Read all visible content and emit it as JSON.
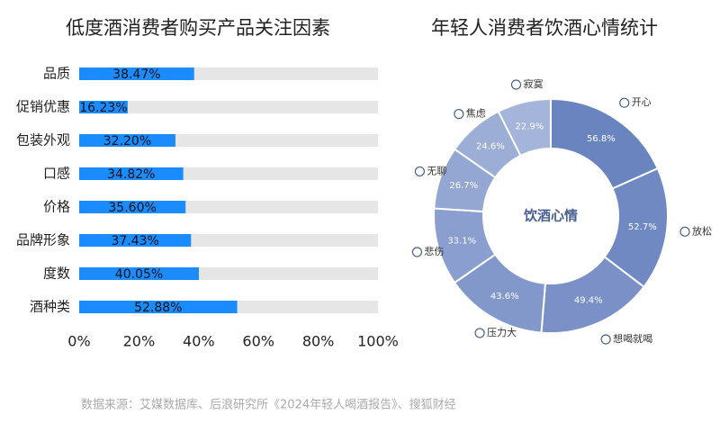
{
  "chart_data": [
    {
      "type": "hbar",
      "title": "低度酒消费者购买产品关注因素",
      "categories": [
        "品质",
        "促销优惠",
        "包装外观",
        "口感",
        "价格",
        "品牌形象",
        "度数",
        "酒种类"
      ],
      "values": [
        38.47,
        16.23,
        32.2,
        34.82,
        35.6,
        37.43,
        40.05,
        52.88
      ],
      "value_labels": [
        "38.47%",
        "16.23%",
        "32.20%",
        "34.82%",
        "35.60%",
        "37.43%",
        "40.05%",
        "52.88%"
      ],
      "color": "#1a8cff",
      "track_color": "#e6e6e6",
      "xlim": [
        0,
        100
      ],
      "xticks": [
        {
          "value": 0,
          "label": "0%"
        },
        {
          "value": 20,
          "label": "20%"
        },
        {
          "value": 40,
          "label": "40%"
        },
        {
          "value": 60,
          "label": "60%"
        },
        {
          "value": 80,
          "label": "80%"
        },
        {
          "value": 100,
          "label": "100%"
        }
      ]
    },
    {
      "type": "donut",
      "title": "年轻人消费者饮酒心情统计",
      "center_label": "饮酒心情",
      "categories": [
        "开心",
        "放松",
        "想喝就喝",
        "压力大",
        "悲伤",
        "无聊",
        "焦虑",
        "寂寞"
      ],
      "values": [
        56.8,
        52.7,
        49.4,
        43.6,
        33.1,
        26.7,
        24.6,
        22.9
      ],
      "value_labels": [
        "56.8%",
        "52.7%",
        "49.4%",
        "43.6%",
        "33.1%",
        "26.7%",
        "24.6%",
        "22.9%"
      ],
      "colors": [
        "#6a84c0",
        "#7189c3",
        "#7a90c7",
        "#8298cb",
        "#8a9fcf",
        "#94a7d3",
        "#9cadd6",
        "#a4b4da"
      ]
    }
  ],
  "source": "数据来源：艾媒数据库、后浪研究所《2024年轻人喝酒报告》、搜狐财经"
}
